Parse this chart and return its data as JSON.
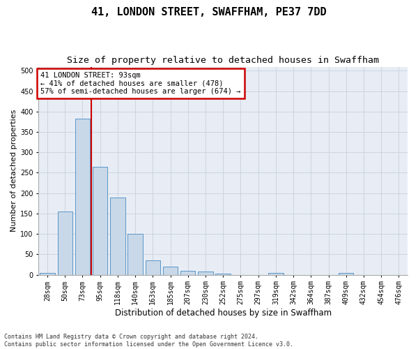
{
  "title": "41, LONDON STREET, SWAFFHAM, PE37 7DD",
  "subtitle": "Size of property relative to detached houses in Swaffham",
  "xlabel": "Distribution of detached houses by size in Swaffham",
  "ylabel": "Number of detached properties",
  "bar_labels": [
    "28sqm",
    "50sqm",
    "73sqm",
    "95sqm",
    "118sqm",
    "140sqm",
    "163sqm",
    "185sqm",
    "207sqm",
    "230sqm",
    "252sqm",
    "275sqm",
    "297sqm",
    "319sqm",
    "342sqm",
    "364sqm",
    "387sqm",
    "409sqm",
    "432sqm",
    "454sqm",
    "476sqm"
  ],
  "bar_heights": [
    5,
    155,
    383,
    265,
    190,
    100,
    35,
    20,
    10,
    8,
    3,
    0,
    0,
    4,
    0,
    0,
    0,
    4,
    0,
    0,
    0
  ],
  "bar_color": "#c8d8e8",
  "bar_edgecolor": "#5a96c8",
  "vline_x_index": 3,
  "vline_color": "#cc0000",
  "annotation_text": "41 LONDON STREET: 93sqm\n← 41% of detached houses are smaller (478)\n57% of semi-detached houses are larger (674) →",
  "annotation_box_color": "#cc0000",
  "annotation_fill": "#ffffff",
  "ylim": [
    0,
    510
  ],
  "yticks": [
    0,
    50,
    100,
    150,
    200,
    250,
    300,
    350,
    400,
    450,
    500
  ],
  "grid_color": "#ccd4e0",
  "bg_color": "#e8edf5",
  "footnote": "Contains HM Land Registry data © Crown copyright and database right 2024.\nContains public sector information licensed under the Open Government Licence v3.0.",
  "title_fontsize": 11,
  "subtitle_fontsize": 9.5,
  "xlabel_fontsize": 8.5,
  "ylabel_fontsize": 8,
  "tick_fontsize": 7,
  "annot_fontsize": 7.5,
  "footnote_fontsize": 6
}
